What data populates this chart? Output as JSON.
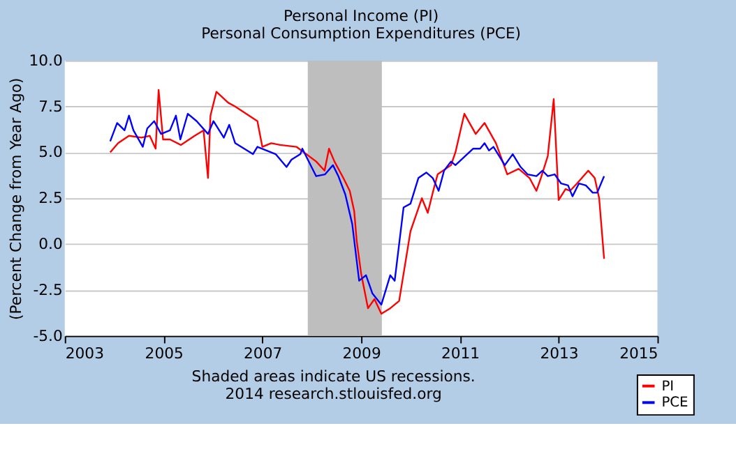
{
  "chart_data": {
    "type": "line",
    "title": [
      "Personal Income (PI)",
      "Personal Consumption Expenditures (PCE)"
    ],
    "ylabel": "(Percent Change from Year Ago)",
    "annotations": [
      "Shaded areas indicate US recessions.",
      "2014 research.stlouisfed.org"
    ],
    "series": [
      {
        "name": "PI",
        "color": "#ff0000",
        "x": [
          2003.92,
          2004.08,
          2004.3,
          2004.55,
          2004.72,
          2004.84,
          2004.9,
          2004.99,
          2005.13,
          2005.35,
          2005.63,
          2005.81,
          2005.9,
          2005.95,
          2006.07,
          2006.31,
          2006.45,
          2006.9,
          2007.0,
          2007.18,
          2007.36,
          2007.69,
          2008.09,
          2008.26,
          2008.35,
          2008.46,
          2008.64,
          2008.77,
          2008.86,
          2008.91,
          2009.0,
          2009.14,
          2009.27,
          2009.41,
          2009.59,
          2009.77,
          2010.0,
          2010.23,
          2010.35,
          2010.46,
          2010.55,
          2010.82,
          2010.91,
          2011.09,
          2011.32,
          2011.5,
          2011.73,
          2011.96,
          2012.19,
          2012.41,
          2012.55,
          2012.64,
          2012.78,
          2012.9,
          2013.0,
          2013.14,
          2013.23,
          2013.37,
          2013.6,
          2013.73,
          2013.82,
          2013.92
        ],
        "values": [
          5.0,
          5.5,
          5.9,
          5.8,
          5.9,
          5.2,
          8.4,
          5.7,
          5.7,
          5.4,
          5.9,
          6.2,
          3.6,
          7.0,
          8.3,
          7.7,
          7.5,
          6.7,
          5.3,
          5.5,
          5.4,
          5.3,
          4.5,
          4.0,
          5.2,
          4.5,
          3.6,
          2.9,
          1.8,
          0.2,
          -1.6,
          -3.5,
          -3.0,
          -3.8,
          -3.5,
          -3.1,
          0.7,
          2.5,
          1.7,
          2.9,
          3.8,
          4.3,
          5.0,
          7.1,
          6.0,
          6.6,
          5.5,
          3.8,
          4.1,
          3.6,
          2.9,
          3.6,
          4.8,
          7.9,
          2.4,
          3.0,
          2.9,
          3.3,
          4.0,
          3.6,
          2.5,
          -0.8
        ]
      },
      {
        "name": "PCE",
        "color": "#0000ff",
        "x": [
          2003.92,
          2004.06,
          2004.21,
          2004.3,
          2004.39,
          2004.58,
          2004.67,
          2004.81,
          2004.95,
          2005.13,
          2005.25,
          2005.34,
          2005.49,
          2005.67,
          2005.9,
          2006.01,
          2006.22,
          2006.33,
          2006.45,
          2006.81,
          2006.9,
          2007.27,
          2007.49,
          2007.59,
          2007.77,
          2007.81,
          2008.09,
          2008.27,
          2008.43,
          2008.54,
          2008.68,
          2008.82,
          2008.96,
          2009.1,
          2009.23,
          2009.41,
          2009.59,
          2009.68,
          2009.86,
          2010.0,
          2010.16,
          2010.32,
          2010.45,
          2010.57,
          2010.68,
          2010.82,
          2010.91,
          2011.27,
          2011.41,
          2011.5,
          2011.59,
          2011.68,
          2011.91,
          2012.07,
          2012.23,
          2012.37,
          2012.55,
          2012.67,
          2012.78,
          2012.92,
          2013.05,
          2013.19,
          2013.28,
          2013.41,
          2013.55,
          2013.69,
          2013.78,
          2013.92
        ],
        "values": [
          5.6,
          6.6,
          6.2,
          7.0,
          6.2,
          5.3,
          6.3,
          6.7,
          6.0,
          6.2,
          7.0,
          5.7,
          7.1,
          6.7,
          6.0,
          6.7,
          5.8,
          6.5,
          5.5,
          4.9,
          5.3,
          4.9,
          4.2,
          4.6,
          4.9,
          5.2,
          3.7,
          3.8,
          4.3,
          3.7,
          2.7,
          1.1,
          -2.0,
          -1.7,
          -2.7,
          -3.3,
          -1.7,
          -2.0,
          2.0,
          2.2,
          3.6,
          3.9,
          3.6,
          2.9,
          4.0,
          4.5,
          4.3,
          5.2,
          5.2,
          5.5,
          5.1,
          5.3,
          4.3,
          4.9,
          4.2,
          3.8,
          3.7,
          4.0,
          3.7,
          3.8,
          3.3,
          3.2,
          2.6,
          3.3,
          3.2,
          2.8,
          2.8,
          3.7
        ]
      }
    ],
    "xlim": [
      2003,
      2015
    ],
    "xticks": [
      2003,
      2005,
      2007,
      2009,
      2011,
      2013,
      2015
    ],
    "ylim": [
      -5,
      10
    ],
    "yticks": [
      {
        "value": -5,
        "label": "-5.0"
      },
      -2.5,
      {
        "value": 0,
        "label": "0.0"
      },
      2.5,
      {
        "value": 5,
        "label": "5.0"
      },
      7.5,
      {
        "value": 10,
        "label": "10.0"
      }
    ],
    "bands": [
      {
        "axis": "x",
        "from": 2007.92,
        "to": 2009.42,
        "color": "#bebebe"
      }
    ],
    "grid": "y",
    "legend": "bottom right",
    "line_style": "solid",
    "marker": "none"
  }
}
